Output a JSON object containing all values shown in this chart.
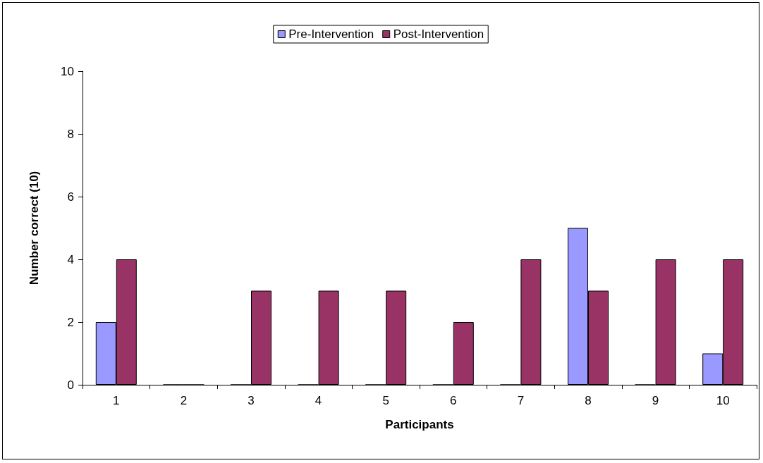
{
  "chart_data": {
    "type": "bar",
    "xlabel": "Participants",
    "ylabel": "Number correct (10)",
    "categories": [
      "1",
      "2",
      "3",
      "4",
      "5",
      "6",
      "7",
      "8",
      "9",
      "10"
    ],
    "series": [
      {
        "name": "Pre-Intervention",
        "color": "#9999ff",
        "values": [
          2,
          0,
          0,
          0,
          0,
          0,
          0,
          5,
          0,
          1
        ]
      },
      {
        "name": "Post-Intervention",
        "color": "#993366",
        "values": [
          4,
          0,
          3,
          3,
          3,
          2,
          4,
          3,
          4,
          4
        ]
      }
    ],
    "ylim": [
      0,
      10
    ],
    "yticks": [
      0,
      2,
      4,
      6,
      8,
      10
    ],
    "grid": false,
    "legend": "top"
  }
}
